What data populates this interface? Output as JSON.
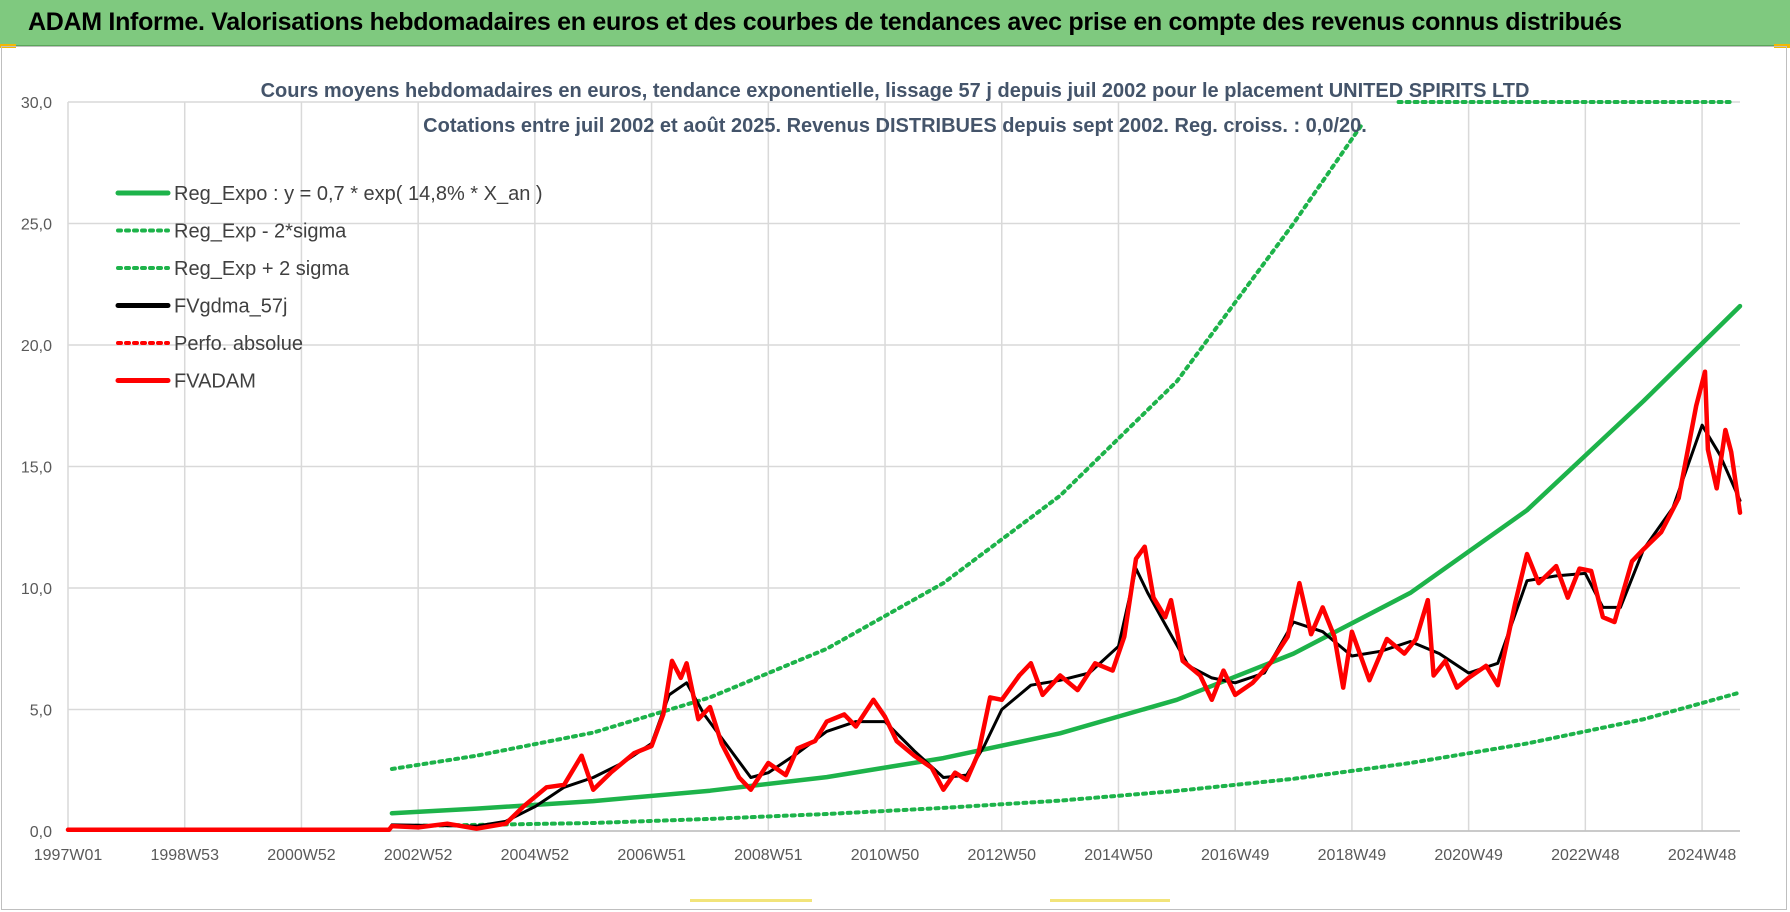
{
  "banner": {
    "title": "ADAM Informe. Valorisations hebdomadaires en euros et des courbes de tendances avec prise en compte des revenus connus distribués"
  },
  "colors": {
    "banner_bg": "#7fc97f",
    "green": "#1db34a",
    "black": "#000000",
    "red": "#ff0000",
    "grid": "#d9d9d9",
    "title_text": "#44546a"
  },
  "chart_data": {
    "type": "line",
    "title": "Cours moyens hebdomadaires en euros, tendance exponentielle, lissage 57 j depuis juil 2002 pour le placement UNITED SPIRITS LTD",
    "subtitle": "Cotations entre juil 2002 et août 2025. Revenus DISTRIBUES depuis sept 2002. Reg. croiss. : 0,0/20.",
    "x_range": [
      1997.0,
      2025.65
    ],
    "ylim": [
      0,
      30
    ],
    "y_ticks": [
      0,
      5,
      10,
      15,
      20,
      25,
      30
    ],
    "y_tick_labels": [
      "0,0",
      "5,0",
      "10,0",
      "15,0",
      "20,0",
      "25,0",
      "30,0"
    ],
    "x_ticks": [
      1997.0,
      1999.0,
      2001.0,
      2003.0,
      2005.0,
      2007.0,
      2009.0,
      2011.0,
      2013.0,
      2015.0,
      2017.0,
      2019.0,
      2021.0,
      2023.0,
      2025.0
    ],
    "x_tick_labels": [
      "1997W01",
      "1998W53",
      "2000W52",
      "2002W52",
      "2004W52",
      "2006W51",
      "2008W51",
      "2010W50",
      "2012W50",
      "2014W50",
      "2016W49",
      "2018W49",
      "2020W49",
      "2022W48",
      "2024W48"
    ],
    "grid": true,
    "legend_position": "top-left",
    "series": [
      {
        "name": "Reg_Expo : y = 0,7 * exp( 14,8% *  X_an )",
        "color": "#1db34a",
        "style": "solid",
        "points": [
          [
            2002.55,
            0.73
          ],
          [
            2004.0,
            0.92
          ],
          [
            2006.0,
            1.23
          ],
          [
            2008.0,
            1.66
          ],
          [
            2010.0,
            2.22
          ],
          [
            2012.0,
            3.0
          ],
          [
            2014.0,
            4.02
          ],
          [
            2016.0,
            5.4
          ],
          [
            2018.0,
            7.3
          ],
          [
            2020.0,
            9.8
          ],
          [
            2022.0,
            13.2
          ],
          [
            2024.0,
            17.7
          ],
          [
            2025.65,
            21.6
          ]
        ]
      },
      {
        "name": "Reg_Exp - 2*sigma",
        "color": "#1db34a",
        "style": "dotted",
        "points": [
          [
            2002.55,
            0.2
          ],
          [
            2004.0,
            0.25
          ],
          [
            2006.0,
            0.33
          ],
          [
            2008.0,
            0.5
          ],
          [
            2010.0,
            0.7
          ],
          [
            2012.0,
            0.95
          ],
          [
            2014.0,
            1.25
          ],
          [
            2016.0,
            1.65
          ],
          [
            2018.0,
            2.15
          ],
          [
            2020.0,
            2.8
          ],
          [
            2022.0,
            3.6
          ],
          [
            2024.0,
            4.6
          ],
          [
            2025.65,
            5.7
          ]
        ]
      },
      {
        "name": "Reg_Exp + 2 sigma",
        "color": "#1db34a",
        "style": "dotted",
        "points": [
          [
            2002.55,
            2.55
          ],
          [
            2004.0,
            3.1
          ],
          [
            2006.0,
            4.05
          ],
          [
            2008.0,
            5.5
          ],
          [
            2010.0,
            7.5
          ],
          [
            2012.0,
            10.2
          ],
          [
            2014.0,
            13.8
          ],
          [
            2016.0,
            18.5
          ],
          [
            2018.0,
            25.0
          ],
          [
            2019.15,
            29.0
          ]
        ]
      },
      {
        "name": "FVgdma_57j",
        "color": "#000000",
        "style": "solid",
        "points": [
          [
            1997.0,
            0.05
          ],
          [
            2002.5,
            0.05
          ],
          [
            2002.55,
            0.25
          ],
          [
            2004.0,
            0.2
          ],
          [
            2004.5,
            0.4
          ],
          [
            2005.0,
            1.0
          ],
          [
            2005.5,
            1.8
          ],
          [
            2006.0,
            2.2
          ],
          [
            2006.5,
            2.8
          ],
          [
            2007.0,
            3.6
          ],
          [
            2007.3,
            5.6
          ],
          [
            2007.6,
            6.1
          ],
          [
            2007.9,
            4.8
          ],
          [
            2008.3,
            3.5
          ],
          [
            2008.7,
            2.2
          ],
          [
            2009.0,
            2.4
          ],
          [
            2009.5,
            3.2
          ],
          [
            2010.0,
            4.1
          ],
          [
            2010.5,
            4.5
          ],
          [
            2011.0,
            4.5
          ],
          [
            2011.5,
            3.3
          ],
          [
            2012.0,
            2.2
          ],
          [
            2012.4,
            2.3
          ],
          [
            2012.7,
            3.5
          ],
          [
            2013.0,
            5.0
          ],
          [
            2013.5,
            6.0
          ],
          [
            2014.0,
            6.2
          ],
          [
            2014.5,
            6.5
          ],
          [
            2015.0,
            7.6
          ],
          [
            2015.3,
            10.8
          ],
          [
            2015.5,
            9.8
          ],
          [
            2015.8,
            8.5
          ],
          [
            2016.2,
            6.8
          ],
          [
            2016.6,
            6.3
          ],
          [
            2017.0,
            6.1
          ],
          [
            2017.5,
            6.5
          ],
          [
            2018.0,
            8.6
          ],
          [
            2018.5,
            8.2
          ],
          [
            2019.0,
            7.2
          ],
          [
            2019.5,
            7.4
          ],
          [
            2020.0,
            7.8
          ],
          [
            2020.5,
            7.3
          ],
          [
            2021.0,
            6.5
          ],
          [
            2021.5,
            6.9
          ],
          [
            2022.0,
            10.3
          ],
          [
            2022.5,
            10.5
          ],
          [
            2023.0,
            10.6
          ],
          [
            2023.3,
            9.2
          ],
          [
            2023.6,
            9.2
          ],
          [
            2024.0,
            11.6
          ],
          [
            2024.5,
            13.3
          ],
          [
            2025.0,
            16.7
          ],
          [
            2025.3,
            15.5
          ],
          [
            2025.65,
            13.6
          ]
        ]
      },
      {
        "name": "Perfo. absolue",
        "color": "#ff0000",
        "style": "dotted",
        "points": [
          [
            1997.0,
            0.05
          ],
          [
            2002.5,
            0.05
          ]
        ]
      },
      {
        "name": "FVADAM",
        "color": "#ff0000",
        "style": "solid",
        "points": [
          [
            1997.0,
            0.05
          ],
          [
            2002.5,
            0.05
          ],
          [
            2002.55,
            0.2
          ],
          [
            2003.0,
            0.15
          ],
          [
            2003.5,
            0.3
          ],
          [
            2004.0,
            0.1
          ],
          [
            2004.5,
            0.3
          ],
          [
            2004.8,
            1.0
          ],
          [
            2005.2,
            1.8
          ],
          [
            2005.5,
            1.9
          ],
          [
            2005.8,
            3.1
          ],
          [
            2006.0,
            1.7
          ],
          [
            2006.3,
            2.4
          ],
          [
            2006.7,
            3.2
          ],
          [
            2007.0,
            3.5
          ],
          [
            2007.2,
            4.8
          ],
          [
            2007.35,
            7.0
          ],
          [
            2007.5,
            6.3
          ],
          [
            2007.6,
            6.9
          ],
          [
            2007.8,
            4.6
          ],
          [
            2008.0,
            5.1
          ],
          [
            2008.2,
            3.6
          ],
          [
            2008.5,
            2.2
          ],
          [
            2008.7,
            1.7
          ],
          [
            2009.0,
            2.8
          ],
          [
            2009.3,
            2.3
          ],
          [
            2009.5,
            3.4
          ],
          [
            2009.8,
            3.7
          ],
          [
            2010.0,
            4.5
          ],
          [
            2010.3,
            4.8
          ],
          [
            2010.5,
            4.3
          ],
          [
            2010.8,
            5.4
          ],
          [
            2011.0,
            4.7
          ],
          [
            2011.2,
            3.7
          ],
          [
            2011.5,
            3.1
          ],
          [
            2011.8,
            2.6
          ],
          [
            2012.0,
            1.7
          ],
          [
            2012.2,
            2.4
          ],
          [
            2012.4,
            2.1
          ],
          [
            2012.6,
            3.2
          ],
          [
            2012.8,
            5.5
          ],
          [
            2013.0,
            5.4
          ],
          [
            2013.3,
            6.4
          ],
          [
            2013.5,
            6.9
          ],
          [
            2013.7,
            5.6
          ],
          [
            2014.0,
            6.4
          ],
          [
            2014.3,
            5.8
          ],
          [
            2014.6,
            6.9
          ],
          [
            2014.9,
            6.6
          ],
          [
            2015.1,
            8.0
          ],
          [
            2015.3,
            11.2
          ],
          [
            2015.45,
            11.7
          ],
          [
            2015.6,
            9.6
          ],
          [
            2015.8,
            8.8
          ],
          [
            2015.9,
            9.5
          ],
          [
            2016.1,
            7.0
          ],
          [
            2016.4,
            6.4
          ],
          [
            2016.6,
            5.4
          ],
          [
            2016.8,
            6.6
          ],
          [
            2017.0,
            5.6
          ],
          [
            2017.3,
            6.1
          ],
          [
            2017.6,
            6.9
          ],
          [
            2017.9,
            8.0
          ],
          [
            2018.1,
            10.2
          ],
          [
            2018.3,
            8.1
          ],
          [
            2018.5,
            9.2
          ],
          [
            2018.7,
            8.0
          ],
          [
            2018.85,
            5.9
          ],
          [
            2019.0,
            8.2
          ],
          [
            2019.3,
            6.2
          ],
          [
            2019.6,
            7.9
          ],
          [
            2019.9,
            7.3
          ],
          [
            2020.1,
            7.9
          ],
          [
            2020.3,
            9.5
          ],
          [
            2020.4,
            6.4
          ],
          [
            2020.6,
            7.0
          ],
          [
            2020.8,
            5.9
          ],
          [
            2021.0,
            6.3
          ],
          [
            2021.3,
            6.8
          ],
          [
            2021.5,
            6.0
          ],
          [
            2021.8,
            9.4
          ],
          [
            2022.0,
            11.4
          ],
          [
            2022.2,
            10.2
          ],
          [
            2022.5,
            10.9
          ],
          [
            2022.7,
            9.6
          ],
          [
            2022.9,
            10.8
          ],
          [
            2023.1,
            10.7
          ],
          [
            2023.3,
            8.8
          ],
          [
            2023.5,
            8.6
          ],
          [
            2023.8,
            11.1
          ],
          [
            2024.0,
            11.6
          ],
          [
            2024.3,
            12.3
          ],
          [
            2024.6,
            13.7
          ],
          [
            2024.9,
            17.5
          ],
          [
            2025.05,
            18.9
          ],
          [
            2025.1,
            15.7
          ],
          [
            2025.25,
            14.1
          ],
          [
            2025.4,
            16.5
          ],
          [
            2025.5,
            15.6
          ],
          [
            2025.65,
            13.1
          ]
        ]
      }
    ]
  }
}
